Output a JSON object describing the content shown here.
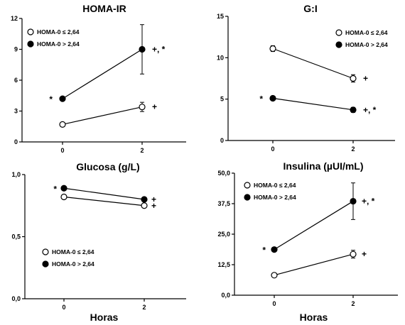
{
  "chart_data": [
    {
      "type": "line",
      "title": "HOMA-IR",
      "xlabel": "",
      "x": [
        0,
        2
      ],
      "xticks": [
        "0",
        "2"
      ],
      "ylim": [
        0,
        12
      ],
      "yticks": [
        "0",
        "3",
        "6",
        "9",
        "12"
      ],
      "ytick_values": [
        0,
        3,
        6,
        9,
        12
      ],
      "legend": [
        "HOMA-0 ≤ 2,64",
        "HOMA-0 > 2,64"
      ],
      "legend_placement": "top-left",
      "series": [
        {
          "values": [
            1.7,
            3.4
          ],
          "errors": [
            0.1,
            0.45
          ],
          "marker": "open"
        },
        {
          "values": [
            4.2,
            9.0
          ],
          "errors": [
            0.2,
            2.4
          ],
          "marker": "filled"
        }
      ],
      "annotations": [
        {
          "text": "*",
          "x": 0,
          "y": 4.2,
          "side": "left"
        },
        {
          "text": "+, *",
          "x": 2,
          "y": 9.0,
          "side": "right"
        },
        {
          "text": "+",
          "x": 2,
          "y": 3.4,
          "side": "right"
        }
      ]
    },
    {
      "type": "line",
      "title": "G:I",
      "xlabel": "",
      "x": [
        0,
        2
      ],
      "xticks": [
        "0",
        "2"
      ],
      "ylim": [
        0,
        15
      ],
      "yticks": [
        "0",
        "5",
        "10",
        "15"
      ],
      "ytick_values": [
        0,
        5,
        10,
        15
      ],
      "legend": [
        "HOMA-0 ≤ 2,64",
        "HOMA-0 > 2,64"
      ],
      "legend_placement": "top-right",
      "series": [
        {
          "values": [
            11.1,
            7.5
          ],
          "errors": [
            0.35,
            0.45
          ],
          "marker": "open"
        },
        {
          "values": [
            5.1,
            3.7
          ],
          "errors": [
            0.2,
            0.3
          ],
          "marker": "filled"
        }
      ],
      "annotations": [
        {
          "text": "*",
          "x": 0,
          "y": 5.1,
          "side": "left"
        },
        {
          "text": "+",
          "x": 2,
          "y": 7.5,
          "side": "right"
        },
        {
          "text": "+, *",
          "x": 2,
          "y": 3.7,
          "side": "right"
        }
      ]
    },
    {
      "type": "line",
      "title": "Glucosa (g/L)",
      "xlabel": "Horas",
      "x": [
        0,
        2
      ],
      "xticks": [
        "0",
        "2"
      ],
      "ylim": [
        0,
        1.0
      ],
      "yticks": [
        "0,0",
        "0,5",
        "1,0"
      ],
      "ytick_values": [
        0,
        0.5,
        1.0
      ],
      "legend": [
        "HOMA-0 ≤ 2,64",
        "HOMA-0 > 2,64"
      ],
      "legend_placement": "bottom-left",
      "series": [
        {
          "values": [
            0.82,
            0.75
          ],
          "errors": [
            0.01,
            0.01
          ],
          "marker": "open"
        },
        {
          "values": [
            0.89,
            0.8
          ],
          "errors": [
            0.01,
            0.01
          ],
          "marker": "filled"
        }
      ],
      "annotations": [
        {
          "text": "*",
          "x": 0,
          "y": 0.89,
          "side": "left"
        },
        {
          "text": "+",
          "x": 2,
          "y": 0.8,
          "side": "right"
        },
        {
          "text": "+",
          "x": 2,
          "y": 0.75,
          "side": "right"
        }
      ]
    },
    {
      "type": "line",
      "title": "Insulina  (µUI/mL)",
      "xlabel": "Horas",
      "x": [
        0,
        2
      ],
      "xticks": [
        "0",
        "2"
      ],
      "ylim": [
        0,
        50
      ],
      "yticks": [
        "0,0",
        "12,5",
        "25,0",
        "37,5",
        "50,0"
      ],
      "ytick_values": [
        0,
        12.5,
        25,
        37.5,
        50
      ],
      "legend": [
        "HOMA-0 ≤ 2,64",
        "HOMA-0 > 2,64"
      ],
      "legend_placement": "top-left",
      "series": [
        {
          "values": [
            8.2,
            16.8
          ],
          "errors": [
            0.4,
            1.6
          ],
          "marker": "open"
        },
        {
          "values": [
            18.7,
            38.5
          ],
          "errors": [
            0.6,
            7.5
          ],
          "marker": "filled"
        }
      ],
      "annotations": [
        {
          "text": "*",
          "x": 0,
          "y": 18.7,
          "side": "left"
        },
        {
          "text": "+, *",
          "x": 2,
          "y": 38.5,
          "side": "right"
        },
        {
          "text": "+",
          "x": 2,
          "y": 16.8,
          "side": "right"
        }
      ]
    }
  ]
}
